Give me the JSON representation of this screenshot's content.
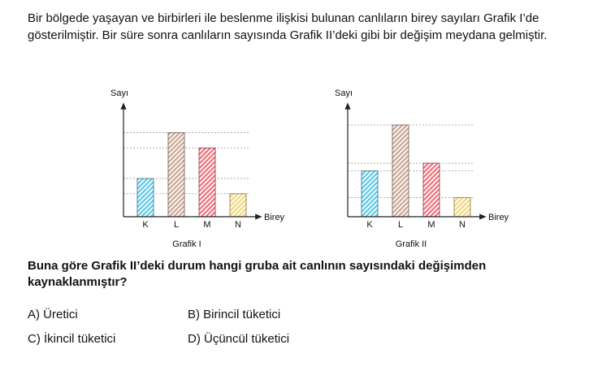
{
  "question": {
    "intro": "Bir bölgede yaşayan ve birbirleri ile beslenme ilişkisi bulunan canlıların birey sayıları Grafik I’de gösterilmiştir. Bir süre sonra canlıların sayısında Grafik II’deki gibi bir değişim meydana gelmiştir.",
    "prompt": "Buna göre Grafik II’deki durum hangi gruba ait canlının sayısındaki değişimden kaynaklanmıştır?"
  },
  "options": {
    "a": "A) Üretici",
    "b": "B) Birincil tüketici",
    "c": "C) İkincil tüketici",
    "d": "D) Üçüncül tüketici"
  },
  "colors": {
    "K": "#5bc8e8",
    "L": "#c9a48f",
    "M": "#ee6f7a",
    "N": "#f3d77a"
  },
  "chart_data": [
    {
      "type": "bar",
      "title": "Grafik I",
      "xlabel": "Birey",
      "ylabel": "Sayı",
      "categories": [
        "K",
        "L",
        "M",
        "N"
      ],
      "values": [
        2.5,
        5.5,
        4.5,
        1.5
      ],
      "ylim": [
        0,
        6
      ],
      "grid": true
    },
    {
      "type": "bar",
      "title": "Grafik II",
      "xlabel": "Birey",
      "ylabel": "Sayı",
      "categories": [
        "K",
        "L",
        "M",
        "N"
      ],
      "values": [
        3,
        6,
        3.5,
        1.25
      ],
      "ylim": [
        0,
        6
      ],
      "grid": true
    }
  ]
}
